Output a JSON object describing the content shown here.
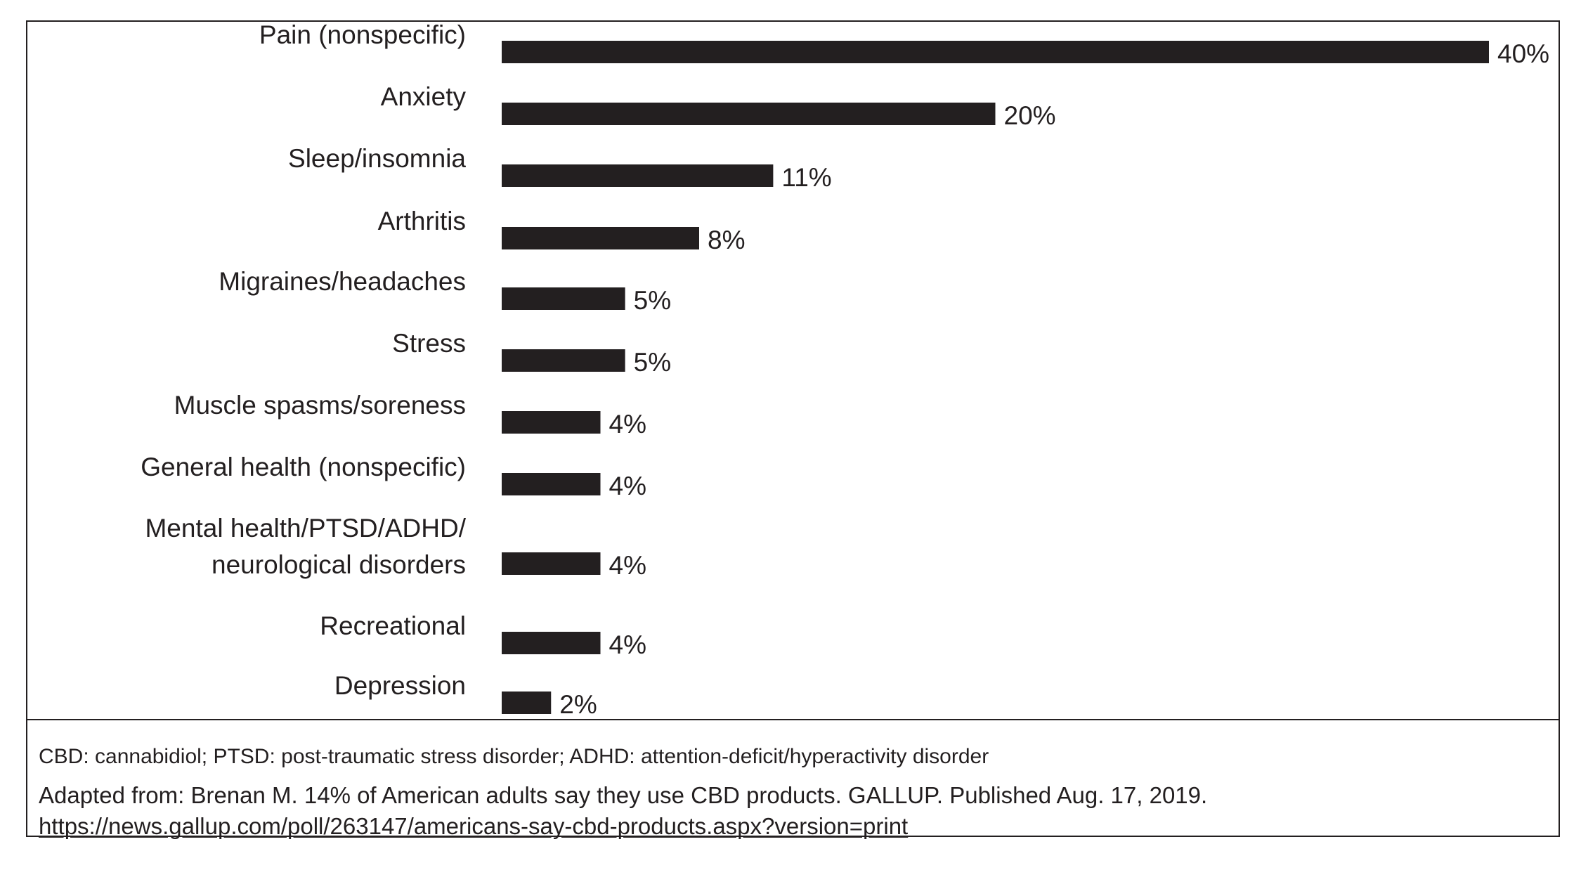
{
  "chart_data": {
    "type": "bar",
    "orientation": "horizontal",
    "categories": [
      "Pain (nonspecific)",
      "Anxiety",
      "Sleep/insomnia",
      "Arthritis",
      "Migraines/headaches",
      "Stress",
      "Muscle spasms/soreness",
      "General health (nonspecific)",
      "Mental health/PTSD/ADHD/\nneurological disorders",
      "Recreational",
      "Depression"
    ],
    "values": [
      40,
      20,
      11,
      8,
      5,
      5,
      4,
      4,
      4,
      4,
      2
    ],
    "data_labels": [
      "40%",
      "20%",
      "11%",
      "8%",
      "5%",
      "5%",
      "4%",
      "4%",
      "4%",
      "4%",
      "2%"
    ],
    "title": "",
    "xlabel": "",
    "ylabel": "",
    "xlim": [
      0,
      40
    ],
    "grid": false,
    "legend": "none",
    "bar_color": "#231f20"
  },
  "footnote": {
    "abbreviations": "CBD: cannabidiol; PTSD: post-traumatic stress disorder; ADHD: attention-deficit/hyperactivity disorder",
    "source_text": "Adapted from: Brenan M. 14% of American adults say they use CBD products. GALLUP. Published Aug. 17, 2019. ",
    "source_link": "https://news.gallup.com/poll/263147/americans-say-cbd-products.aspx?version=print"
  }
}
